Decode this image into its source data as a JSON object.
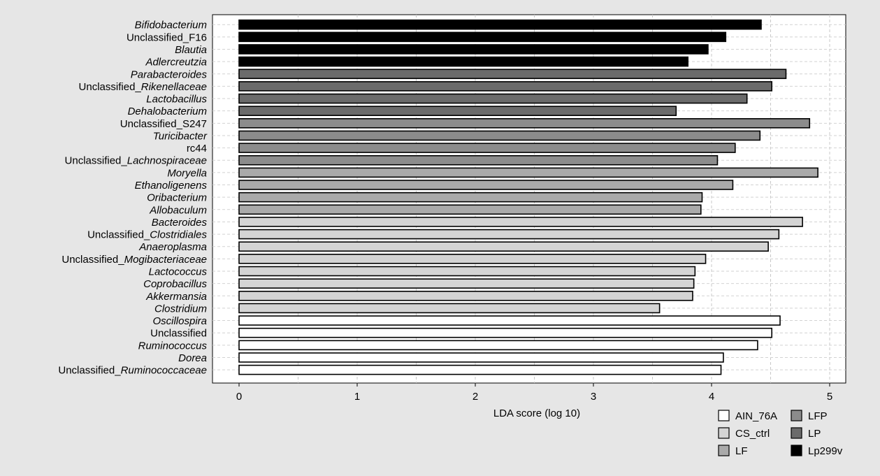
{
  "chart_data": {
    "type": "bar",
    "orientation": "horizontal",
    "xlabel": "LDA score (log 10)",
    "xlim": [
      0,
      5
    ],
    "xticks": [
      "0",
      "1",
      "2",
      "3",
      "4",
      "5"
    ],
    "grid": true,
    "legend_position": "bottom-right",
    "groups": [
      {
        "name": "AIN_76A",
        "color": "#ffffff"
      },
      {
        "name": "CS_ctrl",
        "color": "#d4d4d4"
      },
      {
        "name": "LF",
        "color": "#aaaaaa"
      },
      {
        "name": "LFP",
        "color": "#8c8c8c"
      },
      {
        "name": "LP",
        "color": "#6b6b6b"
      },
      {
        "name": "Lp299v",
        "color": "#000000"
      }
    ],
    "legend_order": [
      "AIN_76A",
      "LFP",
      "CS_ctrl",
      "LP",
      "LF",
      "Lp299v"
    ],
    "bars": [
      {
        "plain": "",
        "italic": "Bifidobacterium",
        "value": 4.42,
        "group": "Lp299v"
      },
      {
        "plain": "Unclassified_F16",
        "italic": "",
        "value": 4.12,
        "group": "Lp299v"
      },
      {
        "plain": "",
        "italic": "Blautia",
        "value": 3.97,
        "group": "Lp299v"
      },
      {
        "plain": "",
        "italic": "Adlercreutzia",
        "value": 3.8,
        "group": "Lp299v"
      },
      {
        "plain": "",
        "italic": "Parabacteroides",
        "value": 4.63,
        "group": "LP"
      },
      {
        "plain": "Unclassified_",
        "italic": "Rikenellaceae",
        "value": 4.51,
        "group": "LP"
      },
      {
        "plain": "",
        "italic": "Lactobacillus",
        "value": 4.3,
        "group": "LP"
      },
      {
        "plain": "",
        "italic": "Dehalobacterium",
        "value": 3.7,
        "group": "LP"
      },
      {
        "plain": "Unclassified_S247",
        "italic": "",
        "value": 4.83,
        "group": "LFP"
      },
      {
        "plain": "",
        "italic": "Turicibacter",
        "value": 4.41,
        "group": "LFP"
      },
      {
        "plain": "rc44",
        "italic": "",
        "value": 4.2,
        "group": "LFP"
      },
      {
        "plain": "Unclassified_",
        "italic": "Lachnospiraceae",
        "value": 4.05,
        "group": "LFP"
      },
      {
        "plain": "",
        "italic": "Moryella",
        "value": 4.9,
        "group": "LF"
      },
      {
        "plain": "",
        "italic": "Ethanoligenens",
        "value": 4.18,
        "group": "LF"
      },
      {
        "plain": "",
        "italic": "Oribacterium",
        "value": 3.92,
        "group": "LF"
      },
      {
        "plain": "",
        "italic": "Allobaculum",
        "value": 3.91,
        "group": "LF"
      },
      {
        "plain": "",
        "italic": "Bacteroides",
        "value": 4.77,
        "group": "CS_ctrl"
      },
      {
        "plain": "Unclassified_",
        "italic": "Clostridiales",
        "value": 4.57,
        "group": "CS_ctrl"
      },
      {
        "plain": "",
        "italic": "Anaeroplasma",
        "value": 4.48,
        "group": "CS_ctrl"
      },
      {
        "plain": "Unclassified_",
        "italic": "Mogibacteriaceae",
        "value": 3.95,
        "group": "CS_ctrl"
      },
      {
        "plain": "",
        "italic": "Lactococcus",
        "value": 3.86,
        "group": "CS_ctrl"
      },
      {
        "plain": "",
        "italic": "Coprobacillus",
        "value": 3.85,
        "group": "CS_ctrl"
      },
      {
        "plain": "",
        "italic": "Akkermansia",
        "value": 3.84,
        "group": "CS_ctrl"
      },
      {
        "plain": "",
        "italic": "Clostridium",
        "value": 3.56,
        "group": "CS_ctrl"
      },
      {
        "plain": "",
        "italic": "Oscillospira",
        "value": 4.58,
        "group": "AIN_76A"
      },
      {
        "plain": "Unclassified",
        "italic": "",
        "value": 4.51,
        "group": "AIN_76A"
      },
      {
        "plain": "",
        "italic": "Ruminococcus",
        "value": 4.39,
        "group": "AIN_76A"
      },
      {
        "plain": "",
        "italic": "Dorea",
        "value": 4.1,
        "group": "AIN_76A"
      },
      {
        "plain": "Unclassified_",
        "italic": "Ruminococcaceae",
        "value": 4.08,
        "group": "AIN_76A"
      }
    ]
  }
}
